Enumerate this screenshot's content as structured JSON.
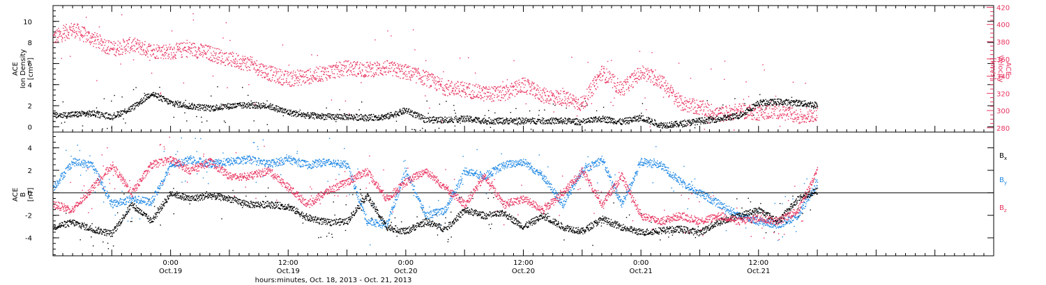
{
  "colors": {
    "black": "#000000",
    "pink": "#e8335f",
    "blue": "#1f88e5"
  },
  "chart_data": [
    {
      "type": "scatter",
      "panel": "plasma",
      "left_axis": {
        "label_lines": [
          "ACE",
          "Ion Density",
          "[cm⁻³]"
        ],
        "range": [
          -0.5,
          11.5
        ],
        "major_ticks": [
          0,
          2,
          4,
          6,
          8,
          10
        ],
        "tick_labels": [
          "0",
          "2",
          "4",
          "6",
          "8",
          "10"
        ]
      },
      "right_axis": {
        "label_lines": [
          "ACE",
          "Velocity",
          "[km/s]"
        ],
        "range": [
          275,
          422
        ],
        "major_ticks": [
          280,
          300,
          320,
          340,
          360,
          380,
          400,
          420
        ],
        "tick_labels": [
          "280",
          "300",
          "320",
          "340",
          "360",
          "380",
          "400",
          "420"
        ]
      },
      "series": [
        {
          "axis": "left",
          "color": "#000000",
          "x": [
            0,
            2,
            4,
            6,
            8,
            10,
            12,
            14,
            16,
            18,
            20,
            22,
            24,
            26,
            28,
            30,
            32,
            34,
            36,
            38,
            40,
            42,
            44,
            46,
            48,
            50,
            52,
            54,
            56,
            58,
            60,
            62,
            64,
            66,
            68,
            70,
            72,
            74,
            76,
            78
          ],
          "y": [
            1.1,
            1.2,
            1.3,
            1.0,
            1.8,
            3.2,
            2.3,
            2.0,
            1.8,
            2.0,
            2.1,
            2.0,
            1.4,
            1.1,
            1.0,
            1.0,
            0.9,
            1.0,
            1.6,
            0.7,
            0.7,
            0.8,
            0.6,
            0.6,
            0.6,
            0.6,
            0.6,
            0.5,
            0.8,
            0.5,
            0.9,
            0.2,
            0.3,
            0.6,
            0.8,
            1.1,
            2.3,
            2.4,
            2.3,
            2.1
          ]
        },
        {
          "axis": "right",
          "color": "#e8335f",
          "x": [
            0,
            2,
            4,
            6,
            8,
            10,
            12,
            14,
            16,
            18,
            20,
            22,
            24,
            26,
            28,
            30,
            32,
            34,
            36,
            38,
            40,
            42,
            44,
            46,
            48,
            50,
            52,
            54,
            56,
            58,
            60,
            62,
            64,
            66,
            68,
            70,
            72,
            74,
            76,
            78
          ],
          "y": [
            385,
            395,
            384,
            372,
            377,
            370,
            369,
            372,
            367,
            360,
            355,
            344,
            337,
            340,
            345,
            350,
            348,
            350,
            345,
            338,
            327,
            325,
            320,
            320,
            330,
            318,
            315,
            308,
            345,
            325,
            345,
            335,
            309,
            304,
            296,
            300,
            298,
            300,
            293,
            298
          ]
        }
      ]
    },
    {
      "type": "scatter",
      "panel": "magnetic field",
      "left_axis": {
        "label_lines": [
          "ACE",
          "B",
          "[nT]"
        ],
        "range": [
          -5.6,
          5.4
        ],
        "major_ticks": [
          -4,
          -2,
          0,
          2,
          4
        ],
        "tick_labels": [
          "-4",
          "-2",
          "0",
          "2",
          "4"
        ]
      },
      "zero_line": 0,
      "legend": [
        {
          "text": "B",
          "sub": "x",
          "color": "#000000"
        },
        {
          "text": "B",
          "sub": "y",
          "color": "#1f88e5"
        },
        {
          "text": "B",
          "sub": "z",
          "color": "#e8335f"
        }
      ],
      "series": [
        {
          "name": "Bx",
          "color": "#000000",
          "x": [
            0,
            2,
            4,
            6,
            8,
            10,
            12,
            14,
            16,
            18,
            20,
            22,
            24,
            26,
            28,
            30,
            32,
            34,
            36,
            38,
            40,
            42,
            44,
            46,
            48,
            50,
            52,
            54,
            56,
            58,
            60,
            62,
            64,
            66,
            68,
            70,
            72,
            74,
            76,
            78
          ],
          "y": [
            -3.0,
            -2.6,
            -3.2,
            -3.6,
            -1.0,
            -2.5,
            0.0,
            -0.5,
            -0.2,
            -0.5,
            -1.0,
            -1.0,
            -1.2,
            -2.2,
            -2.6,
            -2.5,
            -0.2,
            -3.0,
            -3.4,
            -2.5,
            -3.2,
            -1.5,
            -2.0,
            -1.8,
            -3.0,
            -2.0,
            -3.0,
            -3.4,
            -2.3,
            -3.0,
            -3.5,
            -3.3,
            -3.2,
            -3.5,
            -2.5,
            -2.0,
            -1.5,
            -2.5,
            -0.5,
            0.2
          ]
        },
        {
          "name": "By",
          "color": "#1f88e5",
          "x": [
            0,
            2,
            4,
            6,
            8,
            10,
            12,
            14,
            16,
            18,
            20,
            22,
            24,
            26,
            28,
            30,
            32,
            34,
            36,
            38,
            40,
            42,
            44,
            46,
            48,
            50,
            52,
            54,
            56,
            58,
            60,
            62,
            64,
            66,
            68,
            70,
            72,
            74,
            76,
            78
          ],
          "y": [
            0.5,
            2.8,
            2.5,
            -1.0,
            -0.5,
            -0.8,
            2.5,
            3.0,
            2.6,
            2.8,
            3.0,
            2.6,
            3.0,
            2.5,
            2.8,
            2.5,
            -2.5,
            -2.8,
            2.0,
            -2.0,
            -1.5,
            2.0,
            1.5,
            2.5,
            2.8,
            1.5,
            -1.0,
            2.0,
            3.0,
            -1.0,
            2.8,
            2.5,
            1.0,
            0.0,
            -1.0,
            -2.0,
            -2.5,
            -2.8,
            -2.0,
            1.0
          ]
        },
        {
          "name": "Bz",
          "color": "#e8335f",
          "x": [
            0,
            2,
            4,
            6,
            8,
            10,
            12,
            14,
            16,
            18,
            20,
            22,
            24,
            26,
            28,
            30,
            32,
            34,
            36,
            38,
            40,
            42,
            44,
            46,
            48,
            50,
            52,
            54,
            56,
            58,
            60,
            62,
            64,
            66,
            68,
            70,
            72,
            74,
            76,
            78
          ],
          "y": [
            -1.0,
            -1.5,
            0.5,
            2.5,
            0.0,
            2.5,
            3.0,
            2.0,
            2.8,
            1.5,
            1.5,
            2.0,
            0.5,
            -1.0,
            0.2,
            1.0,
            2.0,
            -0.5,
            1.0,
            2.0,
            0.5,
            -1.0,
            1.5,
            -1.0,
            -0.5,
            -1.5,
            0.0,
            2.0,
            -1.0,
            1.5,
            -2.0,
            -2.5,
            -2.0,
            -2.5,
            -2.0,
            -2.5,
            -2.2,
            -2.5,
            -1.5,
            2.0
          ]
        }
      ]
    }
  ],
  "x_axis": {
    "range_hours": [
      0,
      96
    ],
    "major_ticks": [
      {
        "hours": 12,
        "time": "0:00",
        "date": "Oct.19"
      },
      {
        "hours": 24,
        "time": "12:00",
        "date": "Oct.19"
      },
      {
        "hours": 36,
        "time": "0:00",
        "date": "Oct.20"
      },
      {
        "hours": 48,
        "time": "12:00",
        "date": "Oct.20"
      },
      {
        "hours": 60,
        "time": "0:00",
        "date": "Oct.21"
      },
      {
        "hours": 72,
        "time": "12:00",
        "date": "Oct.21"
      }
    ],
    "minor_tick_step_hours": 1,
    "label": "hours:minutes, Oct. 18, 2013 - Oct. 21, 2013"
  }
}
